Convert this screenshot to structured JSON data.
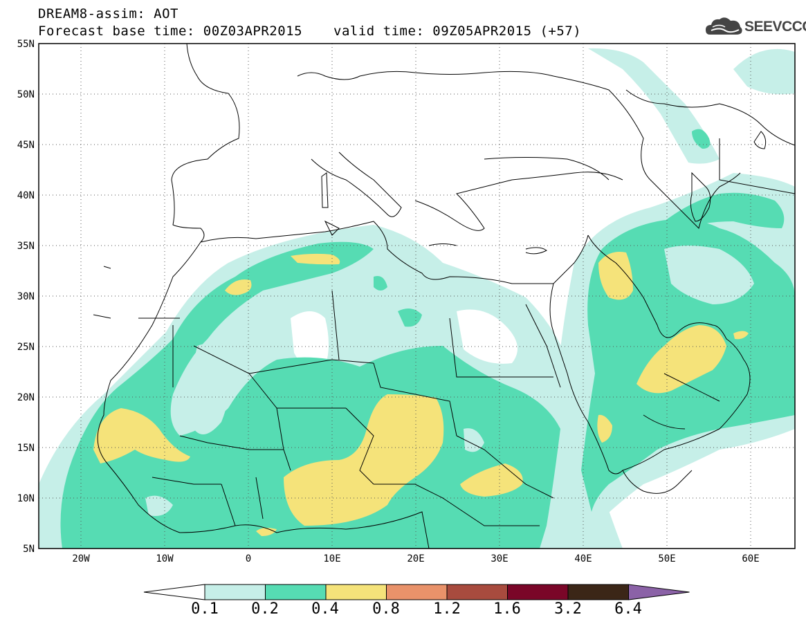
{
  "header": {
    "title_line1": "DREAM8-assim: AOT",
    "title_line2": "Forecast base time: 00Z03APR2015",
    "valid_time": "valid time: 09Z05APR2015 (+57)",
    "logo_text": "SEEVCCC"
  },
  "map": {
    "lon_range": [
      -25,
      65
    ],
    "lat_range": [
      5,
      55
    ],
    "lat_labels": [
      "5N",
      "10N",
      "15N",
      "20N",
      "25N",
      "30N",
      "35N",
      "40N",
      "45N",
      "50N",
      "55N"
    ],
    "lon_labels": [
      "20W",
      "10W",
      "0",
      "10E",
      "20E",
      "30E",
      "40E",
      "50E",
      "60E"
    ],
    "grid_lines": "dotted"
  },
  "colorbar": {
    "levels": [
      "0.1",
      "0.2",
      "0.4",
      "0.8",
      "1.2",
      "1.6",
      "3.2",
      "6.4"
    ],
    "colors": [
      "#ffffff",
      "#c6efe8",
      "#56dcb3",
      "#f5e37a",
      "#e9926a",
      "#a84b3e",
      "#7a0628",
      "#3b2617",
      "#8b62a7"
    ]
  },
  "legend_colors": {
    "land_outline": "#000000",
    "aot_0_1": "#c6efe8",
    "aot_0_2": "#56dcb3",
    "aot_0_4": "#f5e37a"
  }
}
